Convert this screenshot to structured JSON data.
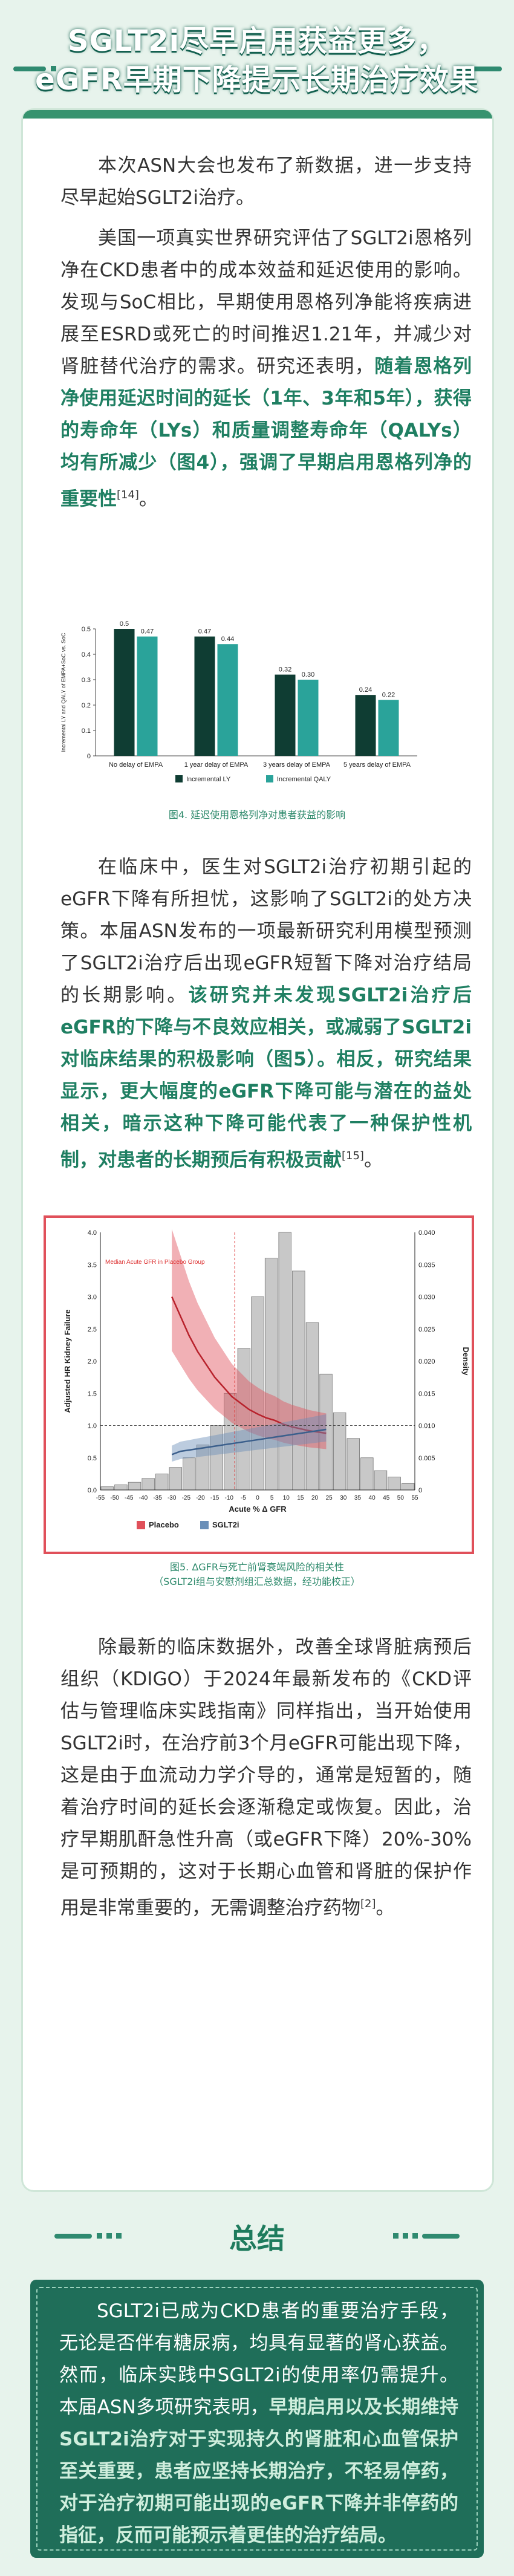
{
  "header": {
    "title_line1": "SGLT2i尽早启用获益更多，",
    "title_line2": "eGFR早期下降提示长期治疗效果"
  },
  "paragraphs": {
    "p1": "本次ASN大会也发布了新数据，进一步支持尽早起始SGLT2i治疗。",
    "p2_pre": "美国一项真实世界研究评估了SGLT2i恩格列净在CKD患者中的成本效益和延迟使用的影响。发现与SoC相比，早期使用恩格列净能将疾病进展至ESRD或死亡的时间推迟1.21年，并减少对肾脏替代治疗的需求。研究还表明，",
    "p2_hl": "随着恩格列净使用延迟时间的延长（1年、3年和5年），获得的寿命年（LYs）和质量调整寿命年（QALYs）均有所减少（图4），强调了早期启用恩格列净的重要性",
    "p2_ref": "[14]",
    "p2_end": "。",
    "p3_pre": "在临床中，医生对SGLT2i治疗初期引起的eGFR下降有所担忧，这影响了SGLT2i的处方决策。本届ASN发布的一项最新研究利用模型预测了SGLT2i治疗后出现eGFR短暂下降对治疗结局的长期影响。",
    "p3_hl": "该研究并未发现SGLT2i治疗后eGFR的下降与不良效应相关，或减弱了SGLT2i对临床结果的积极影响（图5）。相反，研究结果显示，更大幅度的eGFR下降可能与潜在的益处相关，暗示这种下降可能代表了一种保护性机制，对患者的长期预后有积极贡献",
    "p3_ref": "[15]",
    "p3_end": "。",
    "p4": "除最新的临床数据外，改善全球肾脏病预后组织（KDIGO）于2024年最新发布的《CKD评估与管理临床实践指南》同样指出，当开始使用SGLT2i时，在治疗前3个月eGFR可能出现下降，这是由于血流动力学介导的，通常是短暂的，随着治疗时间的延长会逐渐稳定或恢复。因此，治疗早期肌酐急性升高（或eGFR下降）20%-30%是可预期的，这对于长期心血管和肾脏的保护作用是非常重要的，无需调整治疗药物",
    "p4_ref": "[2]",
    "p4_end": "。"
  },
  "figure4": {
    "caption": "图4. 延迟使用恩格列净对患者获益的影响",
    "chart_data": {
      "type": "bar",
      "ylabel": "Incremental LY and QALY of EMPA+SoC vs. SoC",
      "ylim": [
        0,
        0.5
      ],
      "yticks": [
        "0",
        "0.1",
        "0.2",
        "0.3",
        "0.4",
        "0.5"
      ],
      "categories": [
        "No delay of EMPA",
        "1 year delay of EMPA",
        "3 years delay of EMPA",
        "5 years delay of EMPA"
      ],
      "series": [
        {
          "name": "Incremental LY",
          "color": "#0f3d33",
          "values": [
            0.5,
            0.47,
            0.32,
            0.24
          ]
        },
        {
          "name": "Incremental QALY",
          "color": "#2aa39a",
          "values": [
            0.47,
            0.44,
            0.3,
            0.22
          ]
        }
      ],
      "value_labels": [
        [
          "0.5",
          "0.47"
        ],
        [
          "0.47",
          "0.44"
        ],
        [
          "0.32",
          "0.30"
        ],
        [
          "0.24",
          "0.22"
        ]
      ]
    }
  },
  "figure5": {
    "caption_line1": "图5. ΔGFR与死亡前肾衰竭风险的相关性",
    "caption_line2": "（SGLT2i组与安慰剂组汇总数据，经功能校正）",
    "chart_data": {
      "type": "area",
      "ylabel": "Adjusted HR Kidney Failure",
      "ylabel_right": "Density",
      "xlabel": "Acute % Δ GFR",
      "annotation": "Median Acute GFR in Placebo Group",
      "yticks": [
        "0.0",
        "0.5",
        "1.0",
        "1.5",
        "2.0",
        "2.5",
        "3.0",
        "3.5",
        "4.0"
      ],
      "yticks_right": [
        "0",
        "0.005",
        "0.010",
        "0.015",
        "0.020",
        "0.025",
        "0.030",
        "0.035",
        "0.040"
      ],
      "xticks": [
        "-55",
        "-50",
        "-45",
        "-40",
        "-35",
        "-30",
        "-25",
        "-20",
        "-15",
        "-10",
        "-5",
        "0",
        "5",
        "10",
        "15",
        "20",
        "25",
        "30",
        "35",
        "40",
        "45",
        "50",
        "55"
      ],
      "legend": [
        "Placebo",
        "SGLT2i"
      ],
      "colors": {
        "placebo": "#e0505a",
        "sglt2i": "#6a8fb8",
        "hist": "#c8c8c8"
      },
      "hist_density": [
        0.0005,
        0.0008,
        0.0012,
        0.0018,
        0.0025,
        0.0035,
        0.005,
        0.007,
        0.01,
        0.015,
        0.022,
        0.03,
        0.036,
        0.04,
        0.034,
        0.026,
        0.018,
        0.012,
        0.008,
        0.005,
        0.003,
        0.002,
        0.001
      ],
      "placebo_hr": [
        3.0,
        2.7,
        2.4,
        2.15,
        1.95,
        1.75,
        1.6,
        1.45,
        1.35,
        1.25,
        1.18,
        1.12,
        1.08,
        1.02,
        0.98,
        0.95,
        0.92,
        0.9,
        0.88
      ],
      "sglt2i_hr": [
        0.55,
        0.6,
        0.62,
        0.64,
        0.66,
        0.68,
        0.7,
        0.72,
        0.74,
        0.76,
        0.78,
        0.8,
        0.82,
        0.84,
        0.86,
        0.88,
        0.9,
        0.92,
        0.94
      ],
      "hr_x": [
        -30,
        -27,
        -24,
        -21,
        -18,
        -15,
        -12,
        -9,
        -6,
        -3,
        0,
        3,
        6,
        9,
        12,
        15,
        18,
        21,
        24
      ]
    }
  },
  "summary": {
    "title": "总结",
    "text_pre": "SGLT2i已成为CKD患者的重要治疗手段，无论是否伴有糖尿病，均具有显著的肾心获益。然而，临床实践中SGLT2i的使用率仍需提升。本届ASN多项研究表明，",
    "text_hl": "早期启用以及长期维持SGLT2i治疗对于实现持久的肾脏和心血管保护至关重要，患者应坚持长期治疗，不轻易停药，对于治疗初期可能出现的eGFR下降并非停药的指征，反而可能预示着更佳的治疗结局。"
  }
}
